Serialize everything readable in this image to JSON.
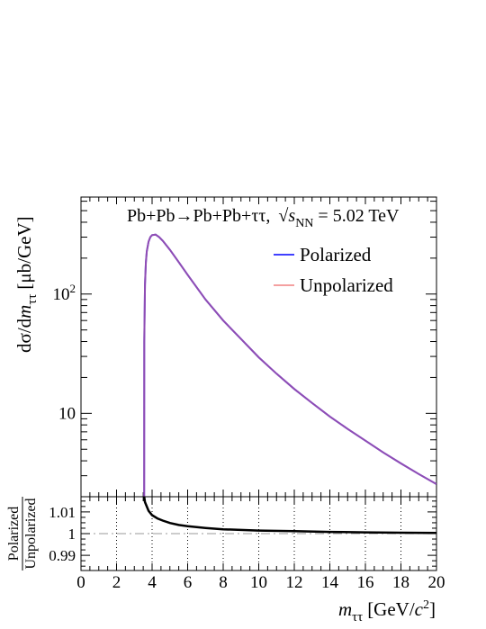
{
  "chart_data": [
    {
      "type": "line",
      "title": "Pb+Pb→Pb+Pb+ττ,  √s_NN = 5.02 TeV",
      "title_parts": {
        "process": "Pb+Pb→Pb+Pb+ττ,",
        "sqrt": "√",
        "s": "s",
        "nn": "NN",
        "energy": "= 5.02 TeV"
      },
      "xlabel": "m_ττ [GeV/c²]",
      "ylabel": "dσ/dm_ττ [μb/GeV]",
      "ylabel_parts": {
        "a": "dσ/d",
        "m": "m",
        "sub": "ττ",
        "units": "[μb/GeV]"
      },
      "yscale": "log",
      "xlim": [
        0,
        20
      ],
      "ylim": [
        2.0,
        650
      ],
      "y_tick_labels": [
        {
          "value": 100,
          "base": "10",
          "exp": "2"
        },
        {
          "value": 10,
          "base": "10",
          "exp": ""
        }
      ],
      "legend": {
        "placement": "top-right",
        "entries": [
          "Polarized",
          "Unpolarized"
        ]
      },
      "series": [
        {
          "name": "Polarized",
          "color": "#0000ff",
          "x": [
            3.554,
            3.56,
            3.6,
            3.65,
            3.7,
            3.8,
            3.9,
            4.0,
            4.2,
            4.4,
            4.6,
            5.0,
            5.5,
            6.0,
            7.0,
            8.0,
            9.0,
            10.0,
            11.0,
            12.0,
            13.0,
            14.0,
            15.0,
            16.0,
            17.0,
            18.0,
            19.0,
            20.0
          ],
          "y": [
            2.0,
            40,
            120,
            185,
            228,
            275,
            300,
            312,
            315,
            300,
            280,
            235,
            185,
            145,
            90,
            60,
            42,
            29.5,
            21.5,
            16.0,
            12.2,
            9.4,
            7.4,
            5.9,
            4.7,
            3.8,
            3.1,
            2.55
          ]
        },
        {
          "name": "Unpolarized",
          "color": "#f08080",
          "x": [
            3.554,
            3.56,
            3.6,
            3.65,
            3.7,
            3.8,
            3.9,
            4.0,
            4.2,
            4.4,
            4.6,
            5.0,
            5.5,
            6.0,
            7.0,
            8.0,
            9.0,
            10.0,
            11.0,
            12.0,
            13.0,
            14.0,
            15.0,
            16.0,
            17.0,
            18.0,
            19.0,
            20.0
          ],
          "y": [
            2.0,
            40,
            120,
            185,
            228,
            275,
            300,
            312,
            315,
            300,
            280,
            235,
            185,
            145,
            90,
            60,
            42,
            29.5,
            21.5,
            16.0,
            12.2,
            9.4,
            7.4,
            5.9,
            4.7,
            3.8,
            3.1,
            2.55
          ]
        }
      ]
    },
    {
      "type": "line",
      "xlabel": "m_ττ [GeV/c²]",
      "xlabel_parts": {
        "m": "m",
        "sub": "ττ",
        "units": "[GeV/",
        "c": "c",
        "exp": "2",
        "close": "]"
      },
      "ylabel": "Polarized / Unpolarized",
      "ylabel_parts": {
        "num": "Polarized",
        "den": "Unpolarized"
      },
      "xlim": [
        0,
        20
      ],
      "ylim": [
        0.983,
        1.017
      ],
      "x_ticks": [
        0,
        2,
        4,
        6,
        8,
        10,
        12,
        14,
        16,
        18,
        20
      ],
      "y_ticks": [
        0.99,
        1,
        1.01
      ],
      "grid": "vertical dotted",
      "reference_line": {
        "y": 1.0,
        "style": "dash-dot",
        "color": "#999999"
      },
      "series": [
        {
          "name": "",
          "color": "#000000",
          "x": [
            3.554,
            3.6,
            3.8,
            4.0,
            4.3,
            4.6,
            5.0,
            5.5,
            6.0,
            7.0,
            8.0,
            10.0,
            12.0,
            14.0,
            16.0,
            18.0,
            20.0
          ],
          "y": [
            1.017,
            1.0145,
            1.0105,
            1.0085,
            1.007,
            1.006,
            1.0049,
            1.004,
            1.0034,
            1.0026,
            1.002,
            1.0014,
            1.0011,
            1.0008,
            1.0006,
            1.0004,
            1.0003
          ]
        }
      ]
    }
  ]
}
